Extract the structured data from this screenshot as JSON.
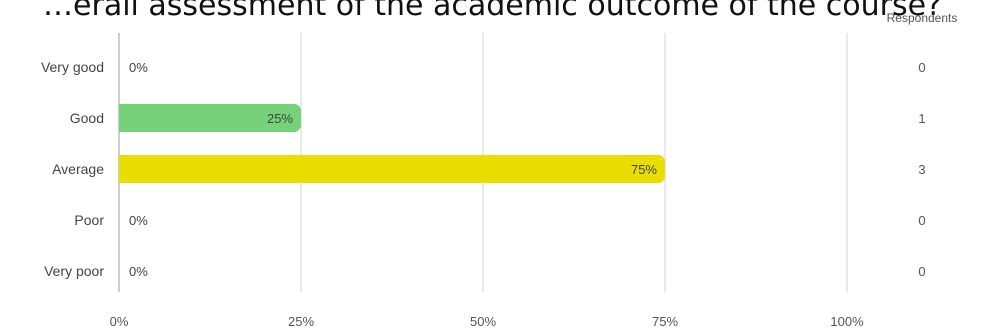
{
  "chart_data": {
    "type": "bar",
    "orientation": "horizontal",
    "title": "…erall assessment of the academic outcome of the course?",
    "categories": [
      "Very good",
      "Good",
      "Average",
      "Poor",
      "Very poor"
    ],
    "series": [
      {
        "percent_values": [
          0,
          25,
          75,
          0,
          0
        ],
        "percent_labels": [
          "0%",
          "25%",
          "75%",
          "0%",
          "0%"
        ],
        "respondents": [
          0,
          1,
          3,
          0,
          0
        ]
      }
    ],
    "bar_colors": [
      "#76d17a",
      "#76d17a",
      "#e8df00",
      "#e8df00",
      "#e8df00"
    ],
    "respondents_header": "Respondents",
    "x_ticks": [
      "0%",
      "25%",
      "50%",
      "75%",
      "100%"
    ],
    "xlim": [
      0,
      100
    ],
    "grid": true,
    "legend": "none"
  }
}
